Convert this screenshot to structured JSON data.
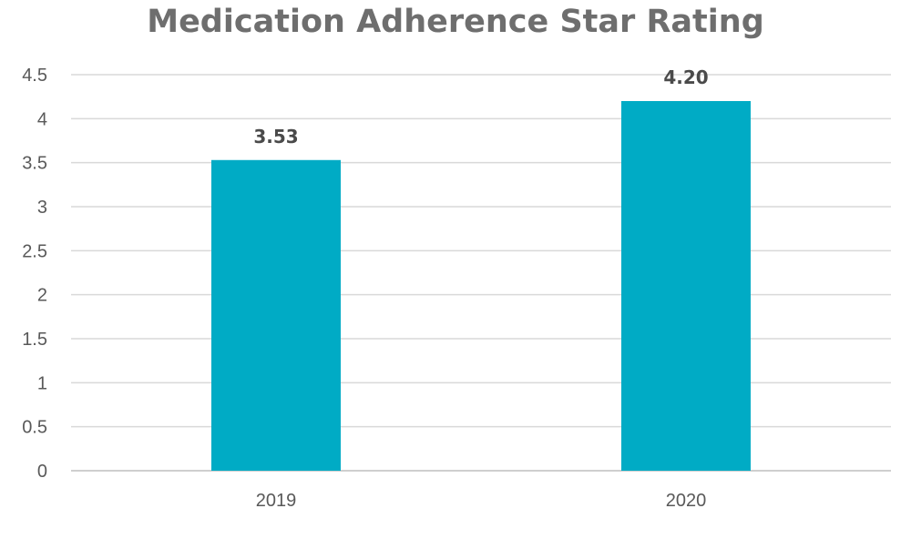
{
  "chart_data": {
    "type": "bar",
    "title": "Medication Adherence Star Rating",
    "categories": [
      "2019",
      "2020"
    ],
    "values": [
      3.53,
      4.2
    ],
    "data_labels": [
      "3.53",
      "4.20"
    ],
    "xlabel": "",
    "ylabel": "",
    "ylim": [
      0,
      4.5
    ],
    "yticks": [
      0,
      0.5,
      1,
      1.5,
      2,
      2.5,
      3,
      3.5,
      4,
      4.5
    ],
    "ytick_labels": [
      "0",
      "0.5",
      "1",
      "1.5",
      "2",
      "2.5",
      "3",
      "3.5",
      "4",
      "4.5"
    ],
    "grid": true,
    "legend": "none",
    "colors": {
      "bar": "#00abc5",
      "grid": "#d9d9d9",
      "axis": "#bfbfbf"
    }
  }
}
